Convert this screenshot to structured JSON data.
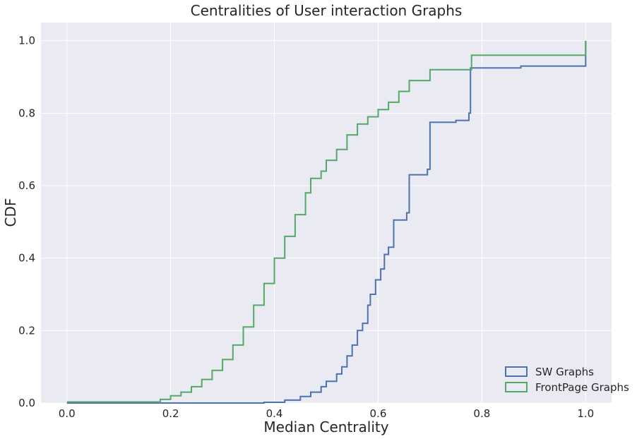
{
  "chart_data": {
    "type": "line",
    "step": true,
    "title": "Centralities of User interaction Graphs",
    "xlabel": "Median Centrality",
    "ylabel": "CDF",
    "xlim": [
      -0.05,
      1.05
    ],
    "ylim": [
      0.0,
      1.05
    ],
    "xticks": [
      0.0,
      0.2,
      0.4,
      0.6,
      0.8,
      1.0
    ],
    "xtick_labels": [
      "0.0",
      "0.2",
      "0.4",
      "0.6",
      "0.8",
      "1.0"
    ],
    "yticks": [
      0.0,
      0.2,
      0.4,
      0.6,
      0.8,
      1.0
    ],
    "ytick_labels": [
      "0.0",
      "0.2",
      "0.4",
      "0.6",
      "0.8",
      "1.0"
    ],
    "grid": true,
    "legend_position": "bottom-right",
    "background": "#eaeaf2",
    "series": [
      {
        "name": "SW Graphs",
        "color": "#4c72b0",
        "points": [
          [
            0.0,
            0.0
          ],
          [
            0.3,
            0.0
          ],
          [
            0.38,
            0.002
          ],
          [
            0.42,
            0.008
          ],
          [
            0.45,
            0.018
          ],
          [
            0.47,
            0.03
          ],
          [
            0.49,
            0.045
          ],
          [
            0.5,
            0.06
          ],
          [
            0.52,
            0.08
          ],
          [
            0.53,
            0.1
          ],
          [
            0.54,
            0.13
          ],
          [
            0.55,
            0.16
          ],
          [
            0.56,
            0.2
          ],
          [
            0.57,
            0.22
          ],
          [
            0.58,
            0.27
          ],
          [
            0.585,
            0.3
          ],
          [
            0.595,
            0.34
          ],
          [
            0.605,
            0.37
          ],
          [
            0.612,
            0.41
          ],
          [
            0.62,
            0.43
          ],
          [
            0.63,
            0.505
          ],
          [
            0.655,
            0.525
          ],
          [
            0.66,
            0.63
          ],
          [
            0.695,
            0.645
          ],
          [
            0.7,
            0.775
          ],
          [
            0.75,
            0.78
          ],
          [
            0.775,
            0.8
          ],
          [
            0.778,
            0.925
          ],
          [
            0.875,
            0.93
          ],
          [
            1.0,
            0.93
          ],
          [
            1.0,
            1.0
          ]
        ]
      },
      {
        "name": "FrontPage Graphs",
        "color": "#55a868",
        "points": [
          [
            0.0,
            0.003
          ],
          [
            0.15,
            0.003
          ],
          [
            0.18,
            0.01
          ],
          [
            0.2,
            0.02
          ],
          [
            0.22,
            0.03
          ],
          [
            0.24,
            0.045
          ],
          [
            0.26,
            0.065
          ],
          [
            0.28,
            0.09
          ],
          [
            0.3,
            0.12
          ],
          [
            0.32,
            0.16
          ],
          [
            0.34,
            0.21
          ],
          [
            0.36,
            0.27
          ],
          [
            0.38,
            0.33
          ],
          [
            0.4,
            0.4
          ],
          [
            0.42,
            0.46
          ],
          [
            0.44,
            0.52
          ],
          [
            0.46,
            0.58
          ],
          [
            0.47,
            0.62
          ],
          [
            0.49,
            0.64
          ],
          [
            0.5,
            0.67
          ],
          [
            0.52,
            0.7
          ],
          [
            0.54,
            0.74
          ],
          [
            0.56,
            0.77
          ],
          [
            0.58,
            0.79
          ],
          [
            0.6,
            0.81
          ],
          [
            0.62,
            0.83
          ],
          [
            0.64,
            0.86
          ],
          [
            0.66,
            0.89
          ],
          [
            0.7,
            0.92
          ],
          [
            0.78,
            0.96
          ],
          [
            1.0,
            0.96
          ],
          [
            1.0,
            1.0
          ]
        ]
      }
    ]
  }
}
